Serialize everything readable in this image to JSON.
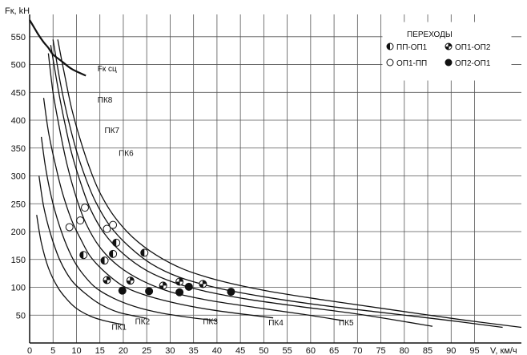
{
  "chart_data": {
    "type": "line",
    "xlabel": "V, км/ч",
    "ylabel": "Fк, kH",
    "xlim": [
      0,
      105
    ],
    "ylim": [
      0,
      590
    ],
    "xticks": [
      0,
      5,
      10,
      15,
      20,
      25,
      30,
      35,
      40,
      45,
      50,
      55,
      60,
      65,
      70,
      75,
      80,
      85,
      90,
      95
    ],
    "xtick_labels": [
      "0",
      "5",
      "10",
      "15",
      "20",
      "25",
      "30",
      "35",
      "40",
      "45",
      "50",
      "55",
      "60",
      "65",
      "70",
      "75",
      "80",
      "85",
      "90",
      "95"
    ],
    "yticks": [
      50,
      100,
      150,
      200,
      250,
      300,
      350,
      400,
      450,
      500,
      550
    ],
    "ytick_labels": [
      "50",
      "100",
      "150",
      "200",
      "250",
      "300",
      "350",
      "400",
      "450",
      "500",
      "550"
    ],
    "grid": true,
    "series": [
      {
        "name": "Fк сц",
        "x": [
          0,
          1,
          2,
          3,
          4,
          5,
          7,
          9,
          12
        ],
        "y": [
          580,
          566,
          552,
          540,
          530,
          518,
          505,
          492,
          480
        ]
      },
      {
        "name": "ПК1",
        "x": [
          1.5,
          2.5,
          4,
          6,
          8,
          10,
          13,
          16,
          20
        ],
        "y": [
          230,
          180,
          135,
          100,
          78,
          62,
          48,
          40,
          33
        ]
      },
      {
        "name": "ПК2",
        "x": [
          2,
          3,
          4.5,
          6.5,
          9,
          12,
          15,
          19,
          25
        ],
        "y": [
          300,
          245,
          195,
          148,
          112,
          88,
          70,
          55,
          44
        ]
      },
      {
        "name": "ПК3",
        "x": [
          2.5,
          3.5,
          5,
          7,
          9,
          11,
          14,
          18,
          23,
          28,
          34,
          40
        ],
        "y": [
          370,
          310,
          250,
          195,
          155,
          128,
          100,
          80,
          64,
          54,
          46,
          40
        ]
      },
      {
        "name": "ПК4",
        "x": [
          3,
          4,
          5.5,
          7,
          9,
          11,
          13,
          16,
          20,
          25,
          32,
          40,
          52
        ],
        "y": [
          440,
          380,
          320,
          270,
          220,
          185,
          155,
          128,
          102,
          85,
          70,
          58,
          45
        ]
      },
      {
        "name": "ПК5",
        "x": [
          4,
          5,
          6.5,
          8,
          10,
          12,
          15,
          19,
          24,
          30,
          38,
          48,
          58,
          67
        ],
        "y": [
          520,
          450,
          380,
          320,
          260,
          215,
          172,
          138,
          112,
          92,
          77,
          64,
          52,
          40
        ]
      },
      {
        "name": "ПК6",
        "x": [
          4.5,
          6,
          7.5,
          9,
          11,
          13,
          16,
          20,
          25,
          31,
          38,
          47,
          58,
          70,
          86
        ],
        "y": [
          535,
          460,
          395,
          340,
          285,
          240,
          196,
          160,
          130,
          108,
          92,
          78,
          65,
          52,
          30
        ]
      },
      {
        "name": "ПК7",
        "x": [
          5,
          6.5,
          8,
          10,
          12,
          14,
          17,
          21,
          26,
          32,
          40,
          50,
          62,
          75,
          90,
          101
        ],
        "y": [
          545,
          470,
          410,
          345,
          295,
          255,
          212,
          175,
          142,
          118,
          99,
          83,
          68,
          55,
          40,
          28
        ]
      },
      {
        "name": "ПК8",
        "x": [
          6,
          7.5,
          9,
          11,
          13,
          15,
          18,
          22,
          27,
          33,
          41,
          51,
          63,
          77,
          92,
          105
        ],
        "y": [
          545,
          480,
          420,
          360,
          310,
          270,
          228,
          190,
          158,
          132,
          111,
          93,
          77,
          60,
          42,
          28
        ]
      }
    ],
    "curve_labels": [
      {
        "text": "Fк сц",
        "x": 14.5,
        "y": 488
      },
      {
        "text": "ПК8",
        "x": 14.5,
        "y": 432
      },
      {
        "text": "ПК7",
        "x": 16,
        "y": 377
      },
      {
        "text": "ПК6",
        "x": 19,
        "y": 336
      },
      {
        "text": "ПК1",
        "x": 17.5,
        "y": 24
      },
      {
        "text": "ПК2",
        "x": 22.5,
        "y": 34
      },
      {
        "text": "ПК3",
        "x": 37,
        "y": 34
      },
      {
        "text": "ПК4",
        "x": 51,
        "y": 32
      },
      {
        "text": "ПК5",
        "x": 66,
        "y": 32
      }
    ],
    "transitions": {
      "title": "ПЕРЕХОДЫ",
      "legend_position": "top-right",
      "types": [
        {
          "key": "pp_op1",
          "label": "ПП-ОП1",
          "fill": "left-half-black"
        },
        {
          "key": "op1_op2",
          "label": "ОП1-ОП2",
          "fill": "vertical-half"
        },
        {
          "key": "op1_pp",
          "label": "ОП1-ПП",
          "fill": "white"
        },
        {
          "key": "op2_op1",
          "label": "ОП2-ОП1",
          "fill": "black"
        }
      ],
      "points": [
        {
          "type": "op1_pp",
          "x": 8.5,
          "y": 208
        },
        {
          "type": "op1_pp",
          "x": 10.8,
          "y": 220
        },
        {
          "type": "op1_pp",
          "x": 11.8,
          "y": 243
        },
        {
          "type": "op1_pp",
          "x": 16.5,
          "y": 205
        },
        {
          "type": "op1_pp",
          "x": 17.8,
          "y": 212
        },
        {
          "type": "pp_op1",
          "x": 11.5,
          "y": 158
        },
        {
          "type": "pp_op1",
          "x": 16,
          "y": 148
        },
        {
          "type": "pp_op1",
          "x": 17.8,
          "y": 160
        },
        {
          "type": "pp_op1",
          "x": 18.5,
          "y": 180
        },
        {
          "type": "pp_op1",
          "x": 24.5,
          "y": 162
        },
        {
          "type": "op1_op2",
          "x": 16.5,
          "y": 113
        },
        {
          "type": "op1_op2",
          "x": 21.5,
          "y": 112
        },
        {
          "type": "op1_op2",
          "x": 28.5,
          "y": 103
        },
        {
          "type": "op1_op2",
          "x": 32,
          "y": 110
        },
        {
          "type": "op1_op2",
          "x": 37,
          "y": 106
        },
        {
          "type": "op2_op1",
          "x": 19.8,
          "y": 94
        },
        {
          "type": "op2_op1",
          "x": 25.5,
          "y": 93
        },
        {
          "type": "op2_op1",
          "x": 32,
          "y": 91
        },
        {
          "type": "op2_op1",
          "x": 34,
          "y": 101
        },
        {
          "type": "op2_op1",
          "x": 43,
          "y": 92
        }
      ]
    },
    "colors": {
      "line": "#111111",
      "grid": "#555555",
      "background": "#ffffff"
    }
  }
}
